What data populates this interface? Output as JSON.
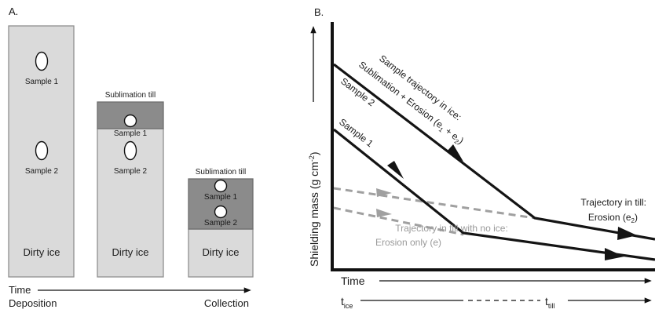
{
  "panel_a": {
    "label": "A.",
    "columns": [
      {
        "body_label": "Dirty ice",
        "top_label": "",
        "sample_1": "Sample 1",
        "sample_2": "Sample 2"
      },
      {
        "body_label": "Dirty ice",
        "top_label": "Sublimation till",
        "sample_1": "Sample 1",
        "sample_2": "Sample 2"
      },
      {
        "body_label": "Dirty ice",
        "top_label": "Sublimation till",
        "sample_1": "Sample 1",
        "sample_2": "Sample 2"
      }
    ],
    "time_axis": {
      "label": "Time",
      "start": "Deposition",
      "end": "Collection"
    }
  },
  "panel_b": {
    "label": "B.",
    "y_label_main": "Shielding mass (g cm",
    "y_label_sup": "-2",
    "y_label_end": ")",
    "x_label": "Time",
    "t_ice_main": "t",
    "t_ice_sub": "ice",
    "t_till_main": "t",
    "t_till_sub": "till",
    "series_labels": {
      "sample_1": "Sample 1",
      "sample_2": "Sample 2"
    },
    "ice_trajectory": {
      "line1": "Sample trajectory in ice:",
      "line2": "Sublimation + Erosion (e",
      "sub1": "1",
      "plus": " + e",
      "sub2": "2",
      "close": ")"
    },
    "till_trajectory": {
      "line1": "Trajectory in till:",
      "line2_main": "Erosion (e",
      "line2_sub": "2",
      "line2_end": ")"
    },
    "no_ice_trajectory": {
      "line1": "Trajectory in till with no ice:",
      "line2": "Erosion only (e)"
    }
  },
  "colors": {
    "dirty_ice": "#dadada",
    "sublimation_till": "#8b8b8b",
    "trajectory_dark": "#141414",
    "trajectory_gray": "#a0a0a0"
  }
}
